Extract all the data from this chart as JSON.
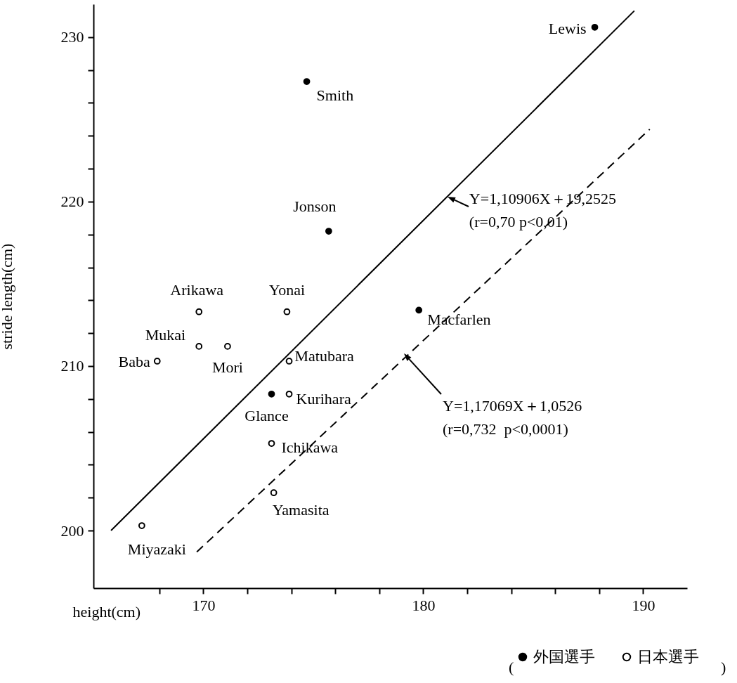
{
  "chart_data": {
    "type": "scatter",
    "xlabel": "height(cm)",
    "ylabel": "stride length(cm)",
    "xlim": [
      165,
      192
    ],
    "ylim": [
      196.5,
      232
    ],
    "xticks": [
      {
        "value": 168,
        "label": null
      },
      170,
      {
        "value": 172,
        "label": null
      },
      {
        "value": 174,
        "label": null
      },
      {
        "value": 176,
        "label": null
      },
      {
        "value": 178,
        "label": null
      },
      180,
      {
        "value": 182,
        "label": null
      },
      {
        "value": 184,
        "label": null
      },
      {
        "value": 186,
        "label": null
      },
      {
        "value": 188,
        "label": null
      },
      190
    ],
    "yticks": [
      200,
      {
        "value": 202,
        "label": null
      },
      {
        "value": 204,
        "label": null
      },
      {
        "value": 206,
        "label": null
      },
      {
        "value": 208,
        "label": null
      },
      210,
      {
        "value": 212,
        "label": null
      },
      {
        "value": 214,
        "label": null
      },
      {
        "value": 216,
        "label": null
      },
      {
        "value": 218,
        "label": null
      },
      220,
      {
        "value": 222,
        "label": null
      },
      {
        "value": 224,
        "label": null
      },
      {
        "value": 226,
        "label": null
      },
      {
        "value": 228,
        "label": null
      },
      230
    ],
    "marker": "circle",
    "legend": "bottom right",
    "grid": false,
    "series": [
      {
        "name": "外国選手",
        "color": "#000000",
        "x": [
          187.8,
          174.7,
          175.7,
          179.8,
          173.1
        ],
        "values": [
          230.6,
          227.3,
          218.2,
          213.4,
          208.3
        ]
      },
      {
        "name": "日本選手",
        "color": "#000000",
        "x": [
          169.8,
          173.8,
          169.8,
          171.1,
          167.9,
          173.9,
          173.9,
          173.1,
          173.2,
          167.2
        ],
        "values": [
          213.3,
          213.3,
          211.2,
          211.2,
          210.3,
          210.3,
          208.3,
          205.3,
          202.3,
          200.3
        ]
      },
      {
        "type": "line",
        "color": "#000000",
        "line_style": "solid",
        "marker": "none",
        "x": [
          165.8,
          189.6
        ],
        "values": [
          200.0,
          231.6
        ]
      },
      {
        "type": "line",
        "color": "#000000",
        "line_style": "dashed",
        "marker": "none",
        "x": [
          169.7,
          190.3
        ],
        "values": [
          198.7,
          224.4
        ]
      }
    ],
    "annotations": [
      {
        "text": "Lewis",
        "x": 187.8,
        "y": 230.6
      },
      {
        "text": "Smith",
        "x": 174.7,
        "y": 227.3
      },
      {
        "text": "Jonson",
        "x": 175.7,
        "y": 218.2
      },
      {
        "text": "Macfarlen",
        "x": 179.8,
        "y": 213.4
      },
      {
        "text": "Glance",
        "x": 173.1,
        "y": 208.3
      },
      {
        "text": "Arikawa",
        "x": 169.8,
        "y": 213.3
      },
      {
        "text": "Yonai",
        "x": 173.8,
        "y": 213.3
      },
      {
        "text": "Mukai",
        "x": 169.8,
        "y": 211.2
      },
      {
        "text": "Mori",
        "x": 171.1,
        "y": 211.2
      },
      {
        "text": "Baba",
        "x": 167.9,
        "y": 210.3
      },
      {
        "text": "Matubara",
        "x": 173.9,
        "y": 210.3
      },
      {
        "text": "Kurihara",
        "x": 173.9,
        "y": 208.3
      },
      {
        "text": "Ichikawa",
        "x": 173.1,
        "y": 205.3
      },
      {
        "text": "Yamasita",
        "x": 173.2,
        "y": 202.3
      },
      {
        "text": "Miyazaki",
        "x": 167.2,
        "y": 200.3
      },
      {
        "text": "Y=1,10906X＋19,2525\n(r=0,70  p<0,01)",
        "x": 181.1,
        "y": 220.3
      },
      "Y=1,17069X＋1,0526\n(r=0,732  p<0,0001)",
      "(",
      ")"
    ]
  }
}
